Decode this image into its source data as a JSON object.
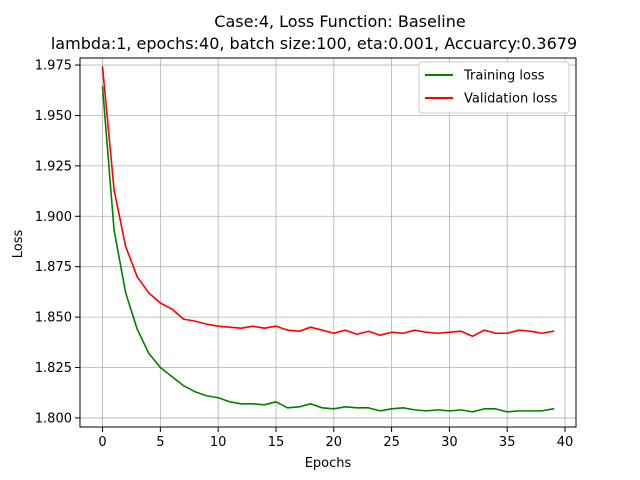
{
  "chart_data": {
    "type": "line",
    "title": "Case:4, Loss Function: Baseline",
    "subtitle": "lambda:1, epochs:40, batch size:100, eta:0.001, Accuarcy:0.3679",
    "xlabel": "Epochs",
    "ylabel": "Loss",
    "xlim": [
      -1.95,
      40.95
    ],
    "ylim": [
      1.7955,
      1.9785
    ],
    "xticks": [
      0,
      5,
      10,
      15,
      20,
      25,
      30,
      35,
      40
    ],
    "yticks": [
      1.8,
      1.825,
      1.85,
      1.875,
      1.9,
      1.925,
      1.95,
      1.975
    ],
    "ytick_labels": [
      "1.800",
      "1.825",
      "1.850",
      "1.875",
      "1.900",
      "1.925",
      "1.950",
      "1.975"
    ],
    "grid": true,
    "legend_position": "top-right",
    "x": [
      0,
      1,
      2,
      3,
      4,
      5,
      6,
      7,
      8,
      9,
      10,
      11,
      12,
      13,
      14,
      15,
      16,
      17,
      18,
      19,
      20,
      21,
      22,
      23,
      24,
      25,
      26,
      27,
      28,
      29,
      30,
      31,
      32,
      33,
      34,
      35,
      36,
      37,
      38,
      39
    ],
    "series": [
      {
        "name": "Training loss",
        "color": "#008000",
        "values": [
          1.964,
          1.893,
          1.862,
          1.844,
          1.832,
          1.825,
          1.8205,
          1.816,
          1.813,
          1.811,
          1.81,
          1.808,
          1.807,
          1.807,
          1.8065,
          1.808,
          1.805,
          1.8055,
          1.807,
          1.805,
          1.8045,
          1.8055,
          1.805,
          1.805,
          1.8035,
          1.8045,
          1.805,
          1.804,
          1.8035,
          1.804,
          1.8035,
          1.804,
          1.803,
          1.8045,
          1.8045,
          1.803,
          1.8035,
          1.8035,
          1.8035,
          1.8045
        ]
      },
      {
        "name": "Validation loss",
        "color": "#ff0000",
        "values": [
          1.974,
          1.913,
          1.885,
          1.87,
          1.862,
          1.857,
          1.854,
          1.849,
          1.848,
          1.8465,
          1.8455,
          1.845,
          1.8445,
          1.8455,
          1.8445,
          1.8455,
          1.8435,
          1.843,
          1.845,
          1.8435,
          1.842,
          1.8435,
          1.8415,
          1.843,
          1.841,
          1.8425,
          1.842,
          1.8435,
          1.8425,
          1.842,
          1.8425,
          1.843,
          1.8405,
          1.8435,
          1.842,
          1.842,
          1.8435,
          1.843,
          1.842,
          1.843
        ]
      }
    ]
  }
}
